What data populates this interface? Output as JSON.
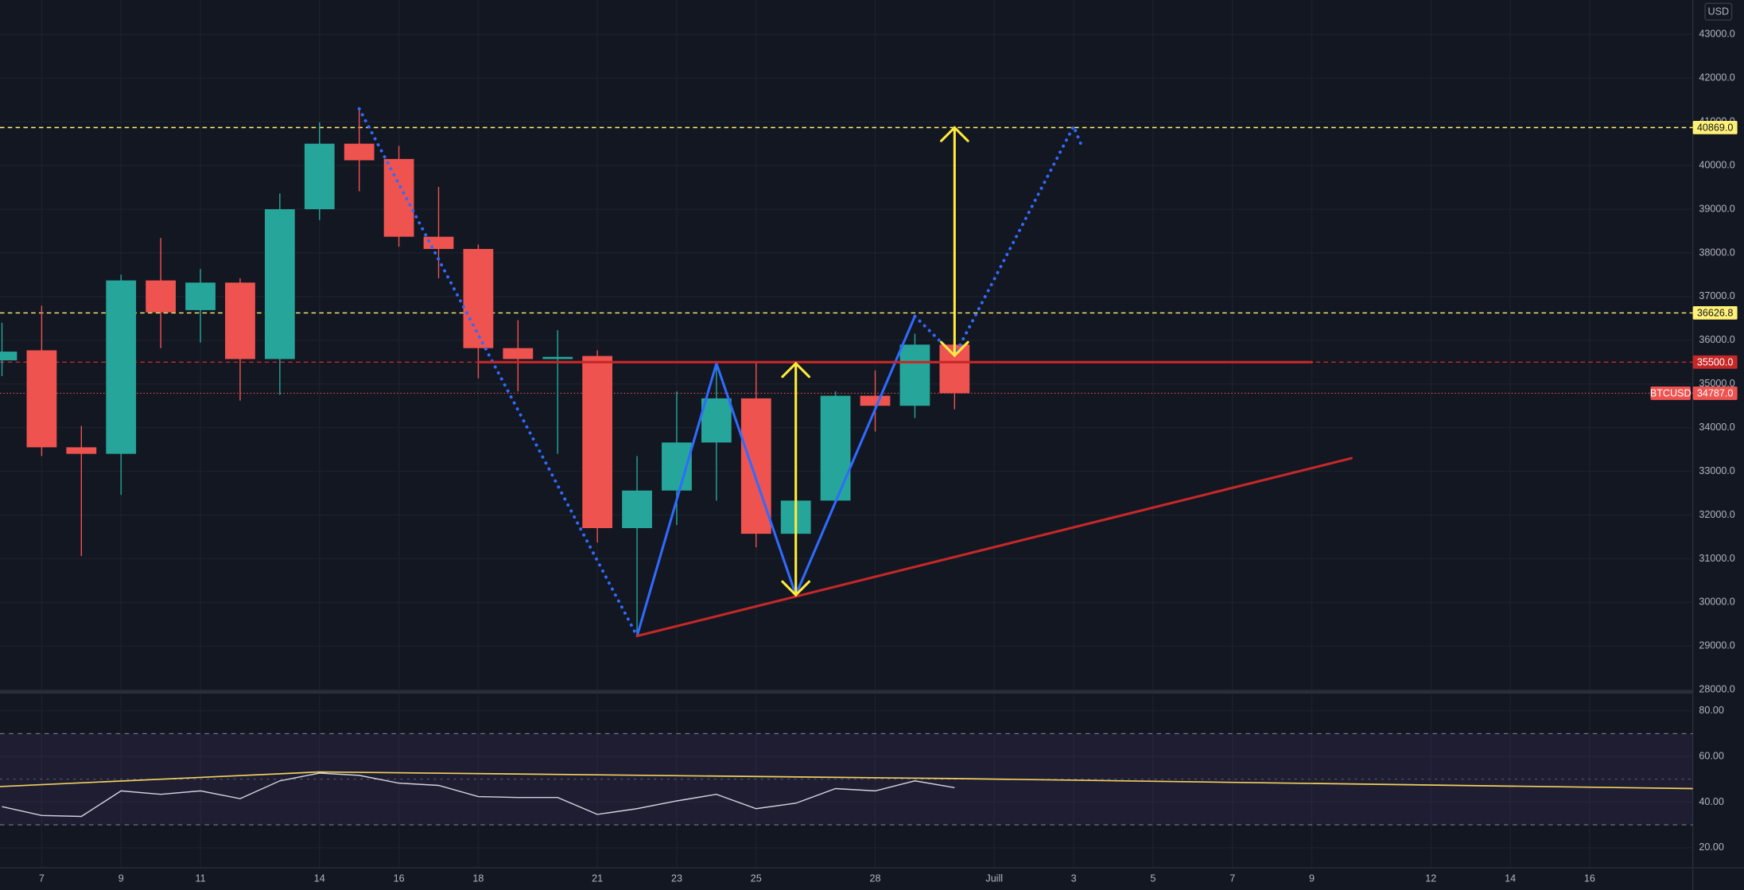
{
  "chart_data": {
    "type": "candlestick",
    "symbol": "BTCUSD",
    "currency": "USD",
    "up_color": "#26a69a",
    "down_color": "#ef5350",
    "grid": true,
    "x": [
      6,
      7,
      8,
      9,
      10,
      11,
      12,
      13,
      14,
      15,
      16,
      17,
      18,
      19,
      20,
      21,
      22,
      23,
      24,
      25,
      26,
      27,
      28,
      29,
      30
    ],
    "open": [
      35540,
      35770,
      33550,
      33400,
      37370,
      36690,
      37320,
      35570,
      39000,
      40500,
      40150,
      38370,
      38090,
      35820,
      35570,
      35640,
      31700,
      32560,
      33660,
      34670,
      31570,
      32330,
      34730,
      34500,
      35900
    ],
    "high": [
      36400,
      36790,
      34040,
      37500,
      38340,
      37630,
      37420,
      39360,
      40990,
      41290,
      40450,
      39510,
      38190,
      36460,
      36230,
      35770,
      33350,
      34830,
      35390,
      35520,
      32890,
      34830,
      35310,
      36150,
      36020
    ],
    "low": [
      35180,
      33350,
      31060,
      32460,
      35820,
      35950,
      34620,
      34750,
      38750,
      39410,
      38140,
      37420,
      35130,
      34830,
      33400,
      31370,
      29230,
      31770,
      32330,
      31260,
      30170,
      32410,
      33910,
      34220,
      34420
    ],
    "close": [
      35740,
      33550,
      33400,
      37370,
      36640,
      37320,
      35570,
      39000,
      40500,
      40120,
      38370,
      38090,
      35820,
      35570,
      35620,
      31700,
      32560,
      33660,
      34670,
      31570,
      32330,
      34730,
      34500,
      35900,
      34787
    ],
    "xlim": [
      5.95,
      48.6
    ],
    "xticks": [
      7,
      9,
      11,
      14,
      16,
      18,
      21,
      23,
      25,
      28,
      {
        "value": 31,
        "label": "Juill"
      },
      {
        "value": 33,
        "label": "3"
      },
      {
        "value": 35,
        "label": "5"
      },
      {
        "value": 37,
        "label": "7"
      },
      {
        "value": 39,
        "label": "9"
      },
      {
        "value": 42,
        "label": "12"
      },
      {
        "value": 44,
        "label": "14"
      },
      {
        "value": 46,
        "label": "16"
      }
    ],
    "ylim": [
      28000,
      43789
    ],
    "yticks": [
      {
        "value": 28000,
        "label": "28000.0"
      },
      {
        "value": 29000,
        "label": "29000.0"
      },
      {
        "value": 30000,
        "label": "30000.0"
      },
      {
        "value": 31000,
        "label": "31000.0"
      },
      {
        "value": 32000,
        "label": "32000.0"
      },
      {
        "value": 33000,
        "label": "33000.0"
      },
      {
        "value": 34000,
        "label": "34000.0"
      },
      {
        "value": 35000,
        "label": "35000.0"
      },
      {
        "value": 36000,
        "label": "36000.0"
      },
      {
        "value": 37000,
        "label": "37000.0"
      },
      {
        "value": 38000,
        "label": "38000.0"
      },
      {
        "value": 39000,
        "label": "39000.0"
      },
      {
        "value": 40000,
        "label": "40000.0"
      },
      {
        "value": 41000,
        "label": "41000.0"
      },
      {
        "value": 42000,
        "label": "42000.0"
      },
      {
        "value": 43000,
        "label": "43000.0"
      }
    ],
    "levels": [
      {
        "value": 40869,
        "label": "40869.0",
        "color": "#fff176",
        "text_color": "#131722",
        "style": "dashed"
      },
      {
        "value": 36626.8,
        "label": "36626.8",
        "color": "#fff176",
        "text_color": "#131722",
        "style": "dashed"
      },
      {
        "value": 35500,
        "label": "35500.0",
        "color": "#c62828",
        "text_color": "#ffffff",
        "style": "dashed"
      }
    ],
    "last_price": {
      "name": "BTCUSD",
      "value": 34787,
      "label": "34787.0",
      "color": "#ef5350"
    },
    "drawings": [
      {
        "color": "#2f6bff",
        "style": "dotted",
        "x": [
          15,
          22
        ],
        "y": [
          41300,
          29230
        ]
      },
      {
        "color": "#2f6bff",
        "style": "solid",
        "x": [
          22,
          24,
          26,
          29
        ],
        "y": [
          29230,
          35470,
          30170,
          36550
        ]
      },
      {
        "color": "#2f6bff",
        "style": "dotted",
        "x": [
          29,
          30,
          33,
          33.2
        ],
        "y": [
          36550,
          35650,
          40900,
          40450
        ]
      },
      {
        "color": "#c62828",
        "style": "solid",
        "x": [
          22,
          40
        ],
        "y": [
          29230,
          33300
        ]
      },
      {
        "color": "#c62828",
        "style": "solid",
        "x": [
          18,
          39
        ],
        "y": [
          35500,
          35500
        ]
      },
      {
        "color": "#ffeb3b",
        "style": "arrow",
        "x": [
          26,
          26
        ],
        "y": [
          35470,
          30170
        ]
      },
      {
        "color": "#ffeb3b",
        "style": "arrow",
        "x": [
          30,
          30
        ],
        "y": [
          40869,
          35650
        ]
      }
    ],
    "rsi": {
      "ylim": [
        11.2,
        86.8
      ],
      "yticks": [
        {
          "value": 20,
          "label": "20.00"
        },
        {
          "value": 40,
          "label": "40.00"
        },
        {
          "value": 60,
          "label": "60.00"
        },
        {
          "value": 80,
          "label": "80.00"
        }
      ],
      "band": [
        30,
        70
      ],
      "mid": 50,
      "color": "#d1d4dc",
      "values": [
        38,
        34.1,
        33.7,
        44.9,
        43.4,
        44.9,
        41.5,
        49.3,
        52.7,
        51.7,
        48.3,
        47.3,
        42.4,
        42,
        42,
        34.6,
        37.1,
        40.5,
        43.4,
        37.1,
        39.5,
        45.9,
        44.9,
        49.3,
        46.3
      ],
      "ma": {
        "color": "#f0d060",
        "x": [
          5.95,
          14,
          30,
          48.6
        ],
        "values": [
          46.8,
          53.2,
          50.3,
          45.9
        ]
      }
    }
  }
}
